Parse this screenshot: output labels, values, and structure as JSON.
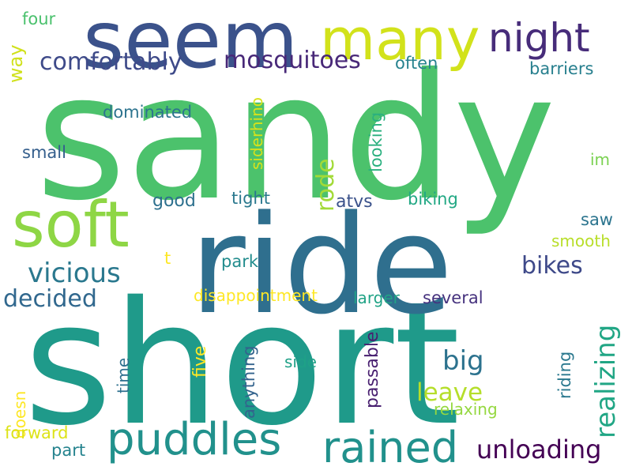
{
  "wordcloud": {
    "words": [
      {
        "text": "sandy",
        "color": "#4cc26c"
      },
      {
        "text": "short",
        "color": "#1f9a8a"
      },
      {
        "text": "ride",
        "color": "#2f6f8e"
      },
      {
        "text": "seem",
        "color": "#3b528b"
      },
      {
        "text": "many",
        "color": "#d2e21b"
      },
      {
        "text": "night",
        "color": "#472c7a"
      },
      {
        "text": "soft",
        "color": "#8ed645"
      },
      {
        "text": "puddles",
        "color": "#21918c"
      },
      {
        "text": "rained",
        "color": "#21918c"
      },
      {
        "text": "comfortably",
        "color": "#3e4a89"
      },
      {
        "text": "mosquitoes",
        "color": "#482878"
      },
      {
        "text": "vicious",
        "color": "#2a788e"
      },
      {
        "text": "decided",
        "color": "#31688e"
      },
      {
        "text": "bikes",
        "color": "#3e4989"
      },
      {
        "text": "unloading",
        "color": "#440154"
      },
      {
        "text": "leave",
        "color": "#b5de2b"
      },
      {
        "text": "big",
        "color": "#2c728e"
      },
      {
        "text": "realizing",
        "color": "#21a685"
      },
      {
        "text": "rode",
        "color": "#a2da37"
      },
      {
        "text": "way",
        "color": "#d0e11c"
      },
      {
        "text": "four",
        "color": "#4ac16d"
      },
      {
        "text": "often",
        "color": "#26828e"
      },
      {
        "text": "barriers",
        "color": "#277f8e"
      },
      {
        "text": "dominated",
        "color": "#2c738e"
      },
      {
        "text": "small",
        "color": "#355f8d"
      },
      {
        "text": "siderhino",
        "color": "#d8e219"
      },
      {
        "text": "looking",
        "color": "#2ab07f"
      },
      {
        "text": "im",
        "color": "#7ad151"
      },
      {
        "text": "good",
        "color": "#2d708e"
      },
      {
        "text": "tight",
        "color": "#2a788e"
      },
      {
        "text": "atvs",
        "color": "#3b528b"
      },
      {
        "text": "biking",
        "color": "#22a884"
      },
      {
        "text": "saw",
        "color": "#2b748e"
      },
      {
        "text": "smooth",
        "color": "#b8de29"
      },
      {
        "text": "t",
        "color": "#fde725"
      },
      {
        "text": "park",
        "color": "#228c8d"
      },
      {
        "text": "disappointment",
        "color": "#fde725"
      },
      {
        "text": "larger",
        "color": "#20a386"
      },
      {
        "text": "several",
        "color": "#46327e"
      },
      {
        "text": "five",
        "color": "#fde725"
      },
      {
        "text": "anything",
        "color": "#33638d"
      },
      {
        "text": "time",
        "color": "#2d708e"
      },
      {
        "text": "side",
        "color": "#1fa187"
      },
      {
        "text": "passable",
        "color": "#481f70"
      },
      {
        "text": "riding",
        "color": "#2a788e"
      },
      {
        "text": "doesn",
        "color": "#fde725"
      },
      {
        "text": "relaxing",
        "color": "#95d840"
      },
      {
        "text": "forward",
        "color": "#dde318"
      },
      {
        "text": "part",
        "color": "#25838e"
      }
    ]
  }
}
